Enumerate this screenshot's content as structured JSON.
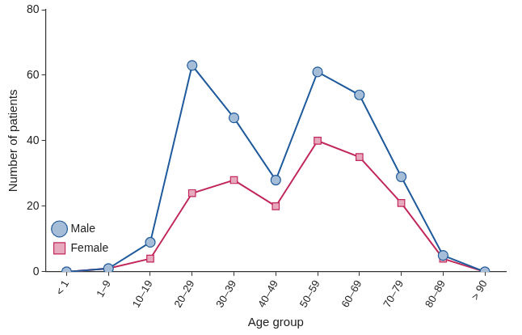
{
  "chart_data": {
    "type": "line",
    "categories": [
      "< 1",
      "1–9",
      "10–19",
      "20–29",
      "30–39",
      "40–49",
      "50–59",
      "60–69",
      "70–79",
      "80–89",
      "> 90"
    ],
    "series": [
      {
        "name": "Male",
        "color": "#1f5a9c",
        "marker": "circle",
        "line_style": "solid",
        "values": [
          0,
          1,
          9,
          63,
          47,
          28,
          61,
          54,
          29,
          5,
          0
        ]
      },
      {
        "name": "Female",
        "color": "#c2275a",
        "marker": "square",
        "line_style": "solid",
        "values": [
          0,
          1,
          4,
          24,
          28,
          20,
          40,
          35,
          21,
          4,
          0
        ]
      }
    ],
    "x_label": "Age group",
    "y_label": "Number of patients",
    "ylim": [
      0,
      80
    ],
    "yticks": [
      0,
      20,
      40,
      60,
      80
    ],
    "grid": false,
    "legend": "upper right"
  }
}
